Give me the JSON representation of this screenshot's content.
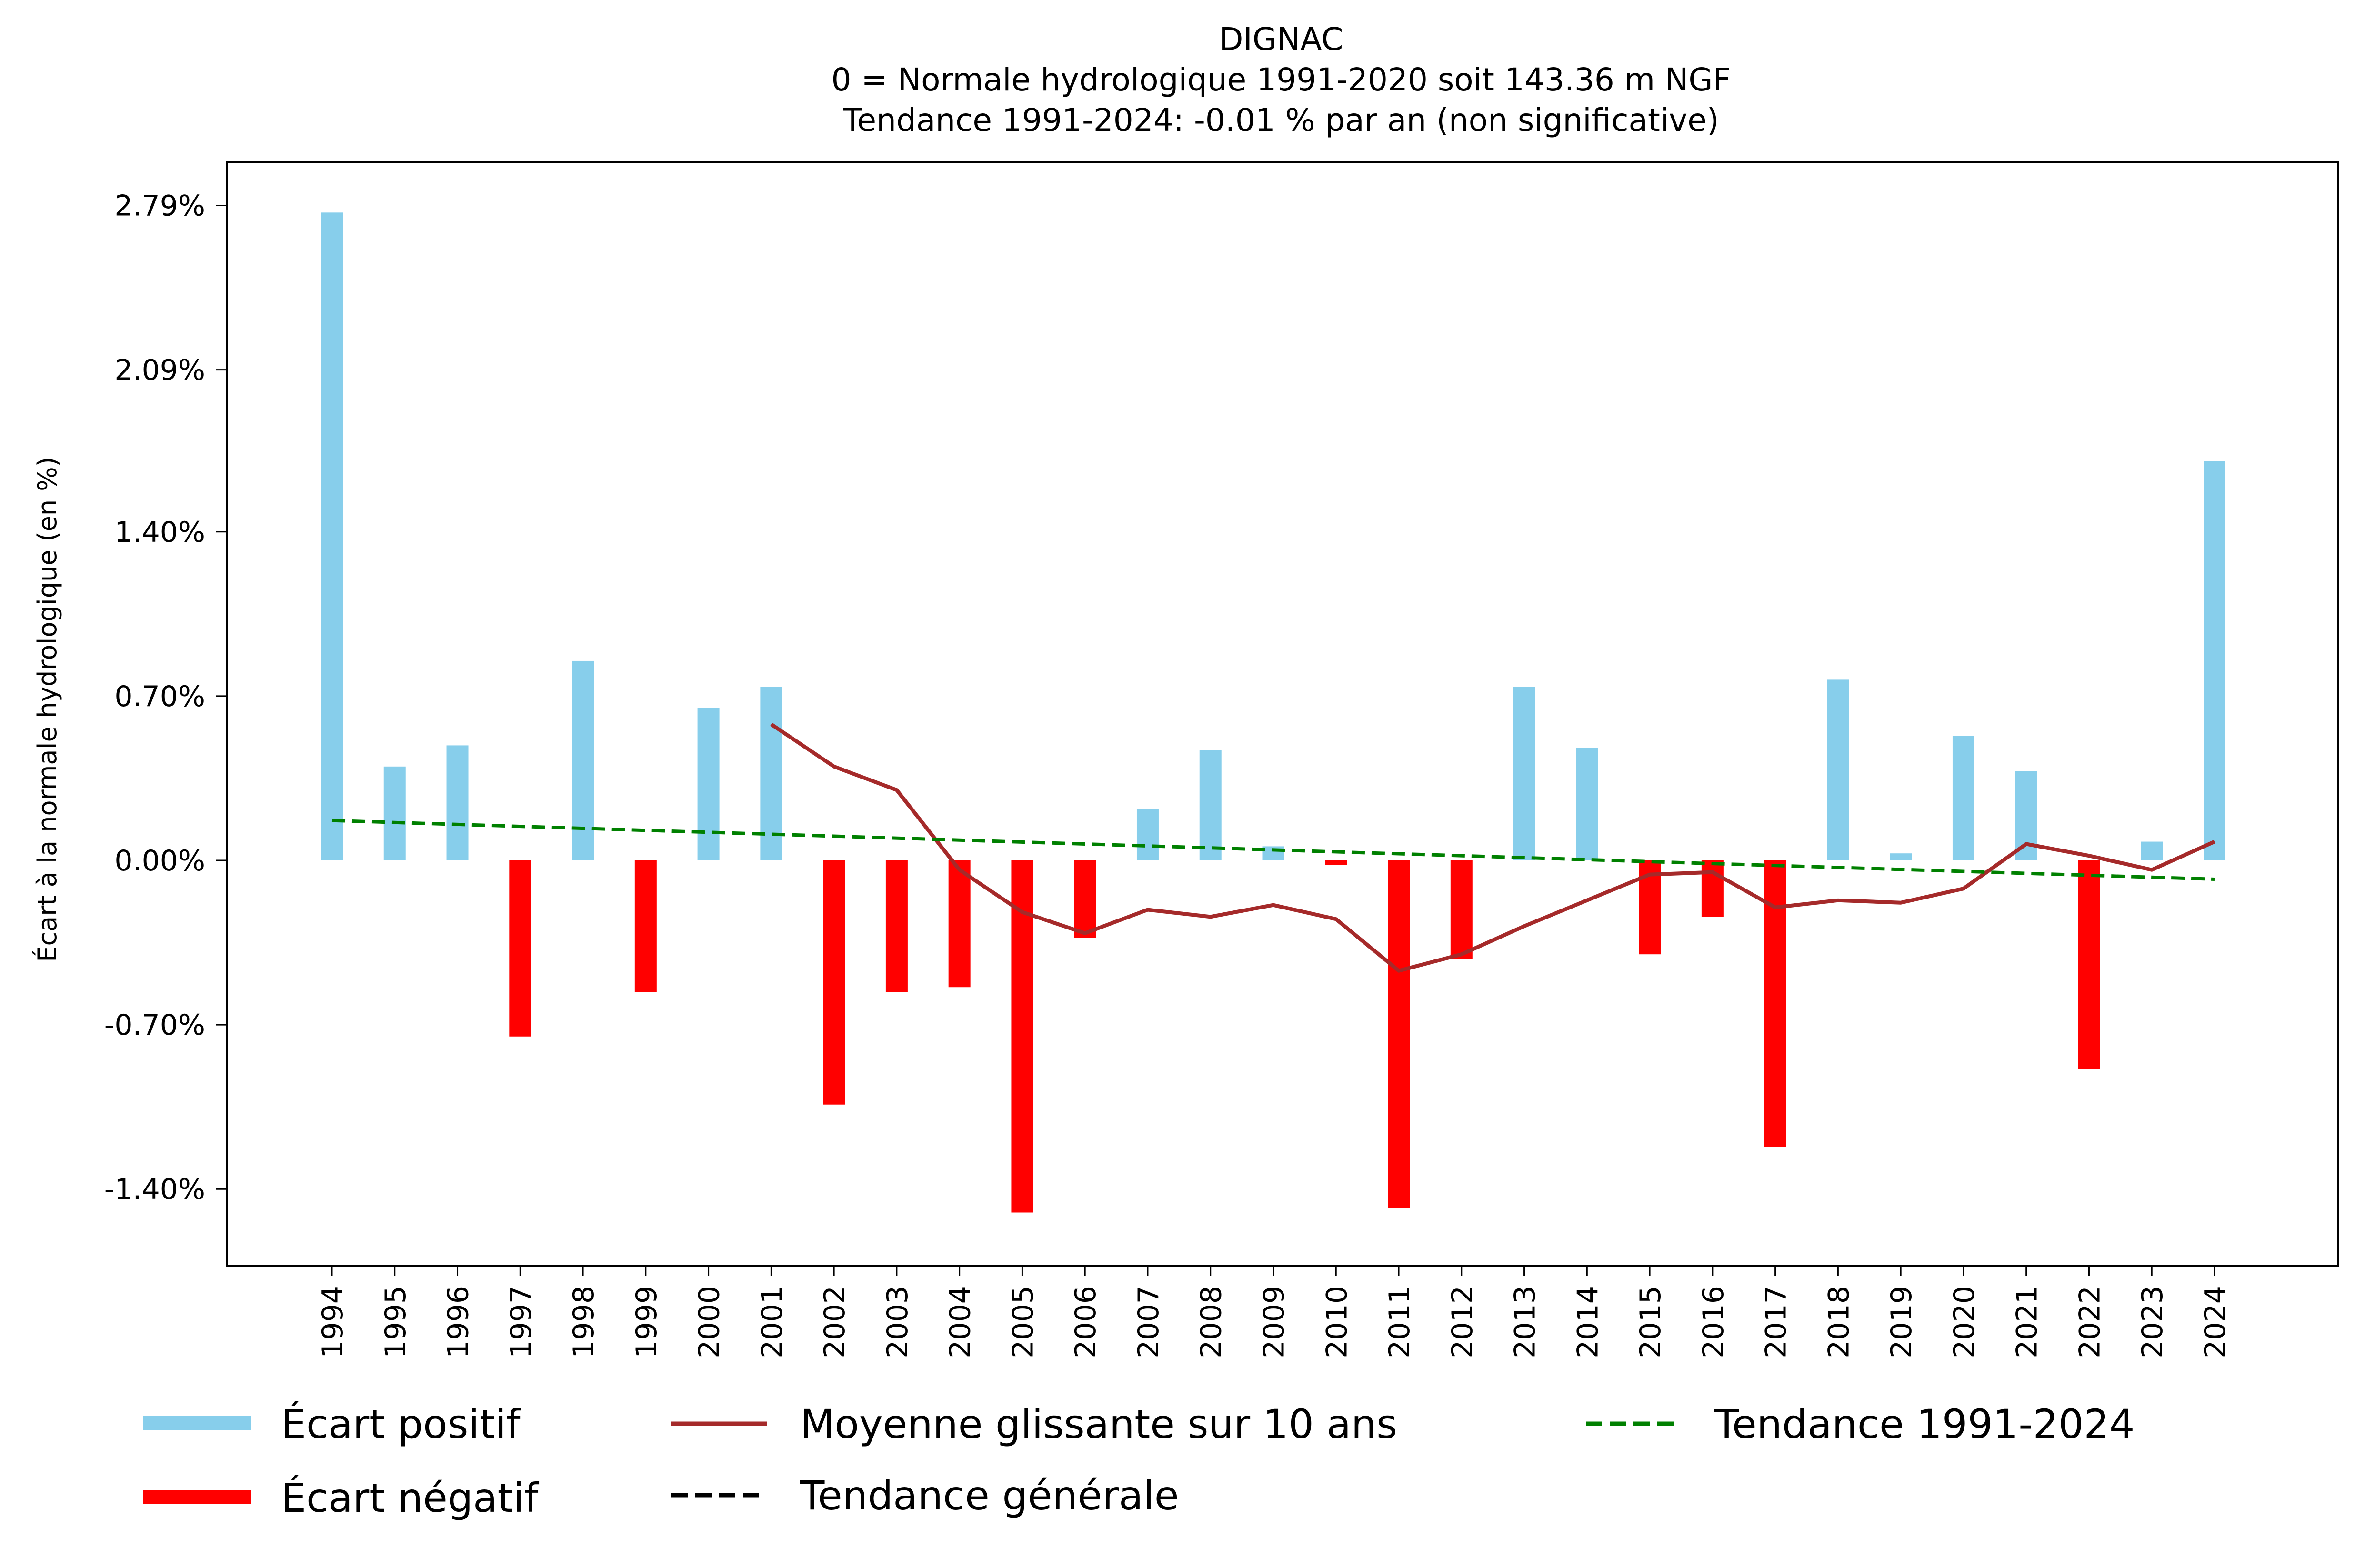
{
  "chart_data": {
    "type": "bar",
    "title_lines": [
      "DIGNAC",
      "0 = Normale hydrologique 1991-2020 soit 143.36 m NGF",
      "Tendance 1991-2024: -0.01 % par an (non significative)"
    ],
    "xlabel": "",
    "ylabel": "Écart à la normale hydrologique (en %)",
    "ylim": [
      -1.68,
      2.98
    ],
    "yticks": [
      -1.4,
      -0.7,
      0.0,
      0.7,
      1.4,
      2.09,
      2.79
    ],
    "ytick_labels": [
      "-1.40%",
      "-0.70%",
      "0.00%",
      "0.70%",
      "1.40%",
      "2.09%",
      "2.79%"
    ],
    "categories": [
      "1994",
      "1995",
      "1996",
      "1997",
      "1998",
      "1999",
      "2000",
      "2001",
      "2002",
      "2003",
      "2004",
      "2005",
      "2006",
      "2007",
      "2008",
      "2009",
      "2010",
      "2011",
      "2012",
      "2013",
      "2014",
      "2015",
      "2016",
      "2017",
      "2018",
      "2019",
      "2020",
      "2021",
      "2022",
      "2023",
      "2024"
    ],
    "values": [
      2.76,
      0.4,
      0.49,
      -0.75,
      0.85,
      -0.56,
      0.65,
      0.74,
      -1.04,
      -0.56,
      -0.54,
      -1.5,
      -0.33,
      0.22,
      0.47,
      0.06,
      -0.02,
      -1.48,
      -0.42,
      0.74,
      0.48,
      -0.4,
      -0.24,
      -1.22,
      0.77,
      0.03,
      0.53,
      0.38,
      -0.89,
      0.08,
      1.7
    ],
    "moving_average": {
      "name": "Moyenne glissante sur 10 ans",
      "start_index": 7,
      "values": [
        0.58,
        0.4,
        0.3,
        -0.04,
        -0.22,
        -0.31,
        -0.21,
        -0.24,
        -0.19,
        -0.25,
        -0.47,
        -0.4,
        -0.28,
        -0.17,
        -0.06,
        -0.05,
        -0.2,
        -0.17,
        -0.18,
        -0.12,
        0.07,
        0.02,
        -0.04,
        0.08
      ]
    },
    "trend": {
      "name": "Tendance 1991-2024",
      "start": 0.17,
      "end": -0.08
    },
    "colors": {
      "positive": "#87ceeb",
      "negative": "#ff0000",
      "moving_average": "#a52a2a",
      "trend": "#008000",
      "general_trend": "#000000"
    },
    "legend": {
      "placement": "bottom",
      "entries": [
        {
          "label": "Écart positif",
          "kind": "patch",
          "color": "#87ceeb"
        },
        {
          "label": "Écart négatif",
          "kind": "patch",
          "color": "#ff0000"
        },
        {
          "label": "Moyenne glissante sur 10 ans",
          "kind": "line",
          "color": "#a52a2a"
        },
        {
          "label": "Tendance générale",
          "kind": "dashed",
          "color": "#000000"
        },
        {
          "label": "Tendance 1991-2024",
          "kind": "dashed",
          "color": "#008000"
        }
      ]
    },
    "grid": false
  }
}
